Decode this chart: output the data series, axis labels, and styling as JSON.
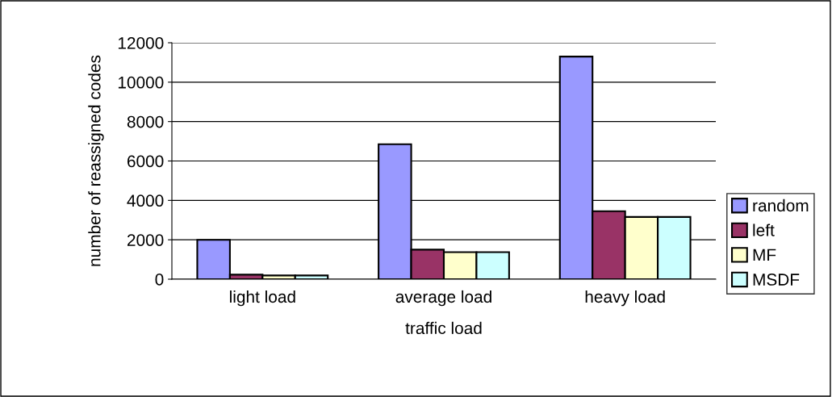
{
  "chart_data": {
    "type": "bar",
    "xlabel": "traffic load",
    "ylabel": "number of reassigned codes",
    "categories": [
      "light load",
      "average load",
      "heavy load"
    ],
    "series": [
      {
        "name": "random",
        "color": "#9999ff",
        "values": [
          2000,
          6850,
          11300
        ]
      },
      {
        "name": "left",
        "color": "#993366",
        "values": [
          230,
          1500,
          3450
        ]
      },
      {
        "name": "MF",
        "color": "#ffffcc",
        "values": [
          190,
          1370,
          3160
        ]
      },
      {
        "name": "MSDF",
        "color": "#ccffff",
        "values": [
          190,
          1370,
          3160
        ]
      }
    ],
    "ylim": [
      0,
      12000
    ],
    "yticks": [
      0,
      2000,
      4000,
      6000,
      8000,
      10000,
      12000
    ],
    "grid": "y",
    "legend": "right"
  }
}
